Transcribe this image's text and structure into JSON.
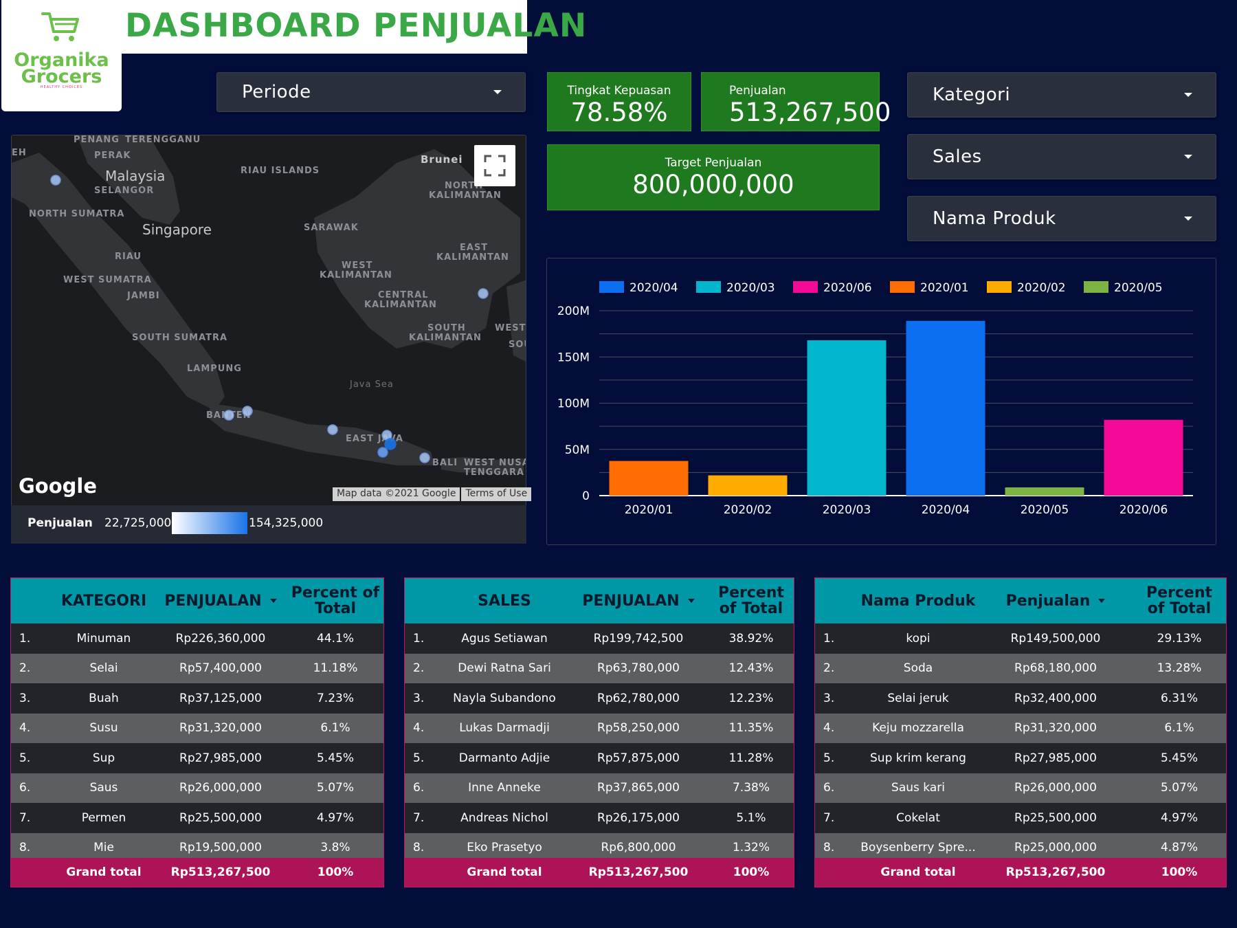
{
  "header": {
    "title": "DASHBOARD PENJUALAN",
    "logo_line1": "Organika",
    "logo_line2": "Grocers",
    "logo_tagline": "HEALTHY CHOICES"
  },
  "filters": {
    "periode": "Periode",
    "kategori": "Kategori",
    "sales": "Sales",
    "nama_produk": "Nama Produk"
  },
  "kpis": {
    "kepuasan": {
      "label": "Tingkat Kepuasan",
      "value": "78.58%"
    },
    "penjualan": {
      "label": "Penjualan",
      "value": "513,267,500"
    },
    "target": {
      "label": "Target Penjualan",
      "value": "800,000,000"
    }
  },
  "map": {
    "labels": {
      "penang": "PENANG",
      "terengganu": "TERENGGANU",
      "perak": "PERAK",
      "eh": "EH",
      "malaysia": "Malaysia",
      "selangor": "SELANGOR",
      "riau_islands": "RIAU ISLANDS",
      "brunei": "Brunei",
      "north_kalimantan_1": "NORTH",
      "north_kalimantan_2": "KALIMANTAN",
      "north_sumatra": "NORTH SUMATRA",
      "singapore": "Singapore",
      "sarawak": "SARAWAK",
      "riau": "RIAU",
      "east_kalimantan_1": "EAST",
      "east_kalimantan_2": "KALIMANTAN",
      "west_kalimantan_1": "WEST",
      "west_kalimantan_2": "KALIMANTAN",
      "west_sumatra": "WEST SUMATRA",
      "jambi": "JAMBI",
      "central_kalimantan_1": "CENTRAL",
      "central_kalimantan_2": "KALIMANTAN",
      "south_sumatra": "SOUTH SUMATRA",
      "south_kalimantan_1": "SOUTH",
      "south_kalimantan_2": "KALIMANTAN",
      "west_edge": "WEST",
      "sou_edge": "SOU",
      "lampung": "LAMPUNG",
      "java_sea": "Java Sea",
      "banten": "BANTEN",
      "east_java": "EAST JAVA",
      "bali": "BALI",
      "west_nusa": "WEST NUSA",
      "tenggara": "TENGGARA"
    },
    "google": "Google",
    "attribution": "Map data ©2021 Google",
    "terms": "Terms of Use",
    "legend_title": "Penjualan",
    "legend_min": "22,725,000",
    "legend_max": "154,325,000"
  },
  "chart_data": {
    "type": "bar",
    "categories": [
      "2020/01",
      "2020/02",
      "2020/03",
      "2020/04",
      "2020/05",
      "2020/06"
    ],
    "values": [
      37500000,
      21900000,
      168000000,
      189000000,
      8900000,
      82000000
    ],
    "colors": [
      "#ff6d00",
      "#ffab00",
      "#00b5cc",
      "#0b6fef",
      "#7cb342",
      "#f50a97"
    ],
    "legend": [
      {
        "name": "2020/04",
        "color": "#0b6fef"
      },
      {
        "name": "2020/03",
        "color": "#00b5cc"
      },
      {
        "name": "2020/06",
        "color": "#f50a97"
      },
      {
        "name": "2020/01",
        "color": "#ff6d00"
      },
      {
        "name": "2020/02",
        "color": "#ffab00"
      },
      {
        "name": "2020/05",
        "color": "#7cb342"
      }
    ],
    "ylim": [
      0,
      200000000
    ],
    "yticks": [
      "0",
      "50M",
      "100M",
      "150M",
      "200M"
    ],
    "legend_position": "top",
    "grid": true
  },
  "tables": {
    "kategori": {
      "headers": [
        "KATEGORI",
        "PENJUALAN",
        "Percent of Total"
      ],
      "rows": [
        [
          "1.",
          "Minuman",
          "Rp226,360,000",
          "44.1%"
        ],
        [
          "2.",
          "Selai",
          "Rp57,400,000",
          "11.18%"
        ],
        [
          "3.",
          "Buah",
          "Rp37,125,000",
          "7.23%"
        ],
        [
          "4.",
          "Susu",
          "Rp31,320,000",
          "6.1%"
        ],
        [
          "5.",
          "Sup",
          "Rp27,985,000",
          "5.45%"
        ],
        [
          "6.",
          "Saus",
          "Rp26,000,000",
          "5.07%"
        ],
        [
          "7.",
          "Permen",
          "Rp25,500,000",
          "4.97%"
        ],
        [
          "8.",
          "Mie",
          "Rp19,500,000",
          "3.8%"
        ]
      ],
      "total": [
        "Grand total",
        "Rp513,267,500",
        "100%"
      ]
    },
    "sales": {
      "headers": [
        "SALES",
        "PENJUALAN",
        "Percent of Total"
      ],
      "rows": [
        [
          "1.",
          "Agus Setiawan",
          "Rp199,742,500",
          "38.92%"
        ],
        [
          "2.",
          "Dewi Ratna Sari",
          "Rp63,780,000",
          "12.43%"
        ],
        [
          "3.",
          "Nayla Subandono",
          "Rp62,780,000",
          "12.23%"
        ],
        [
          "4.",
          "Lukas Darmadji",
          "Rp58,250,000",
          "11.35%"
        ],
        [
          "5.",
          "Darmanto Adjie",
          "Rp57,875,000",
          "11.28%"
        ],
        [
          "6.",
          "Inne Anneke",
          "Rp37,865,000",
          "7.38%"
        ],
        [
          "7.",
          "Andreas Nichol",
          "Rp26,175,000",
          "5.1%"
        ],
        [
          "8.",
          "Eko Prasetyo",
          "Rp6,800,000",
          "1.32%"
        ]
      ],
      "total": [
        "Grand total",
        "Rp513,267,500",
        "100%"
      ]
    },
    "produk": {
      "headers": [
        "Nama Produk",
        "Penjualan",
        "Percent of Total"
      ],
      "rows": [
        [
          "1.",
          "kopi",
          "Rp149,500,000",
          "29.13%"
        ],
        [
          "2.",
          "Soda",
          "Rp68,180,000",
          "13.28%"
        ],
        [
          "3.",
          "Selai jeruk",
          "Rp32,400,000",
          "6.31%"
        ],
        [
          "4.",
          "Keju mozzarella",
          "Rp31,320,000",
          "6.1%"
        ],
        [
          "5.",
          "Sup krim kerang",
          "Rp27,985,000",
          "5.45%"
        ],
        [
          "6.",
          "Saus kari",
          "Rp26,000,000",
          "5.07%"
        ],
        [
          "7.",
          "Cokelat",
          "Rp25,500,000",
          "4.97%"
        ],
        [
          "8.",
          "Boysenberry Spre...",
          "Rp25,000,000",
          "4.87%"
        ]
      ],
      "total": [
        "Grand total",
        "Rp513,267,500",
        "100%"
      ]
    }
  }
}
